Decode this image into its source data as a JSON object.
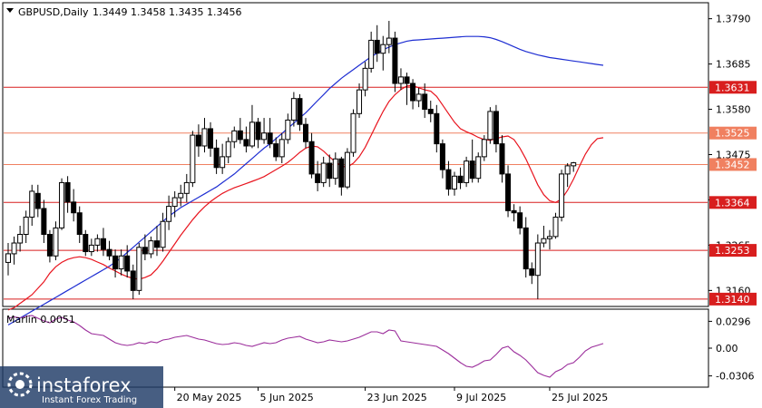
{
  "header": {
    "symbol": "GBPUSD,Daily",
    "ohlc": "1.3449 1.3458 1.3435 1.3456"
  },
  "sub_window": {
    "indicator_label": "Marlin 0.0051"
  },
  "watermark": {
    "brand": "instaforex",
    "tagline": "Instant Forex Trading"
  },
  "colors": {
    "background": "#ffffff",
    "candle_up": "#ffffff",
    "candle_down": "#000000",
    "ma_fast": "#e8141e",
    "ma_slow": "#1e2ed2",
    "level_line": "#d81e1e",
    "level_highlight": "#f08060",
    "marlin": "#9b2d9b"
  },
  "chart_data": [
    {
      "type": "candlestick",
      "symbol": "GBPUSD",
      "timeframe": "Daily",
      "x_ticks": [
        "20 May 2025",
        "5 Jun 2025",
        "23 Jun 2025",
        "9 Jul 2025",
        "25 Jul 2025"
      ],
      "y_ticks": [
        1.316,
        1.3265,
        1.337,
        1.3475,
        1.358,
        1.3685,
        1.379
      ],
      "ylim": [
        1.3125,
        1.3825
      ],
      "levels": [
        {
          "value": 1.3631,
          "label": "1.3631",
          "style": "line"
        },
        {
          "value": 1.3525,
          "label": "1.3525",
          "style": "highlight"
        },
        {
          "value": 1.3452,
          "label": "1.3452",
          "style": "highlight"
        },
        {
          "value": 1.3364,
          "label": "1.3364",
          "style": "line"
        },
        {
          "value": 1.3253,
          "label": "1.3253",
          "style": "line"
        },
        {
          "value": 1.314,
          "label": "1.3140",
          "style": "line"
        }
      ],
      "candles": [
        [
          1.3225,
          1.327,
          1.3195,
          1.3245
        ],
        [
          1.3245,
          1.3285,
          1.322,
          1.327
        ],
        [
          1.327,
          1.331,
          1.325,
          1.329
        ],
        [
          1.329,
          1.3345,
          1.327,
          1.333
        ],
        [
          1.333,
          1.3405,
          1.331,
          1.339
        ],
        [
          1.3385,
          1.3405,
          1.333,
          1.335
        ],
        [
          1.335,
          1.337,
          1.327,
          1.329
        ],
        [
          1.329,
          1.33,
          1.3225,
          1.324
        ],
        [
          1.324,
          1.332,
          1.323,
          1.3305
        ],
        [
          1.3305,
          1.342,
          1.33,
          1.341
        ],
        [
          1.341,
          1.3425,
          1.334,
          1.3365
        ],
        [
          1.3365,
          1.3395,
          1.332,
          1.334
        ],
        [
          1.334,
          1.3355,
          1.327,
          1.329
        ],
        [
          1.329,
          1.33,
          1.324,
          1.325
        ],
        [
          1.325,
          1.328,
          1.324,
          1.3265
        ],
        [
          1.3265,
          1.329,
          1.325,
          1.328
        ],
        [
          1.328,
          1.3305,
          1.324,
          1.3255
        ],
        [
          1.3255,
          1.3275,
          1.323,
          1.324
        ],
        [
          1.324,
          1.3255,
          1.319,
          1.321
        ],
        [
          1.321,
          1.3255,
          1.3195,
          1.324
        ],
        [
          1.324,
          1.3265,
          1.319,
          1.3205
        ],
        [
          1.3205,
          1.322,
          1.314,
          1.316
        ],
        [
          1.316,
          1.327,
          1.315,
          1.326
        ],
        [
          1.326,
          1.329,
          1.323,
          1.3245
        ],
        [
          1.3245,
          1.3285,
          1.3235,
          1.3275
        ],
        [
          1.3275,
          1.331,
          1.324,
          1.326
        ],
        [
          1.326,
          1.334,
          1.325,
          1.332
        ],
        [
          1.332,
          1.338,
          1.33,
          1.3355
        ],
        [
          1.3355,
          1.339,
          1.333,
          1.3375
        ],
        [
          1.3375,
          1.3405,
          1.3355,
          1.3385
        ],
        [
          1.3385,
          1.343,
          1.3365,
          1.341
        ],
        [
          1.341,
          1.353,
          1.34,
          1.352
        ],
        [
          1.352,
          1.3545,
          1.347,
          1.3495
        ],
        [
          1.3495,
          1.356,
          1.348,
          1.3535
        ],
        [
          1.3535,
          1.355,
          1.347,
          1.349
        ],
        [
          1.349,
          1.351,
          1.343,
          1.3445
        ],
        [
          1.3445,
          1.35,
          1.343,
          1.347
        ],
        [
          1.347,
          1.3515,
          1.3455,
          1.3505
        ],
        [
          1.3505,
          1.354,
          1.349,
          1.353
        ],
        [
          1.353,
          1.356,
          1.35,
          1.351
        ],
        [
          1.351,
          1.354,
          1.348,
          1.3495
        ],
        [
          1.3495,
          1.359,
          1.349,
          1.355
        ],
        [
          1.355,
          1.356,
          1.349,
          1.351
        ],
        [
          1.351,
          1.356,
          1.35,
          1.3525
        ],
        [
          1.3525,
          1.356,
          1.349,
          1.35
        ],
        [
          1.35,
          1.3515,
          1.346,
          1.347
        ],
        [
          1.347,
          1.3525,
          1.3455,
          1.351
        ],
        [
          1.351,
          1.357,
          1.35,
          1.3555
        ],
        [
          1.3555,
          1.362,
          1.354,
          1.3605
        ],
        [
          1.3605,
          1.3615,
          1.353,
          1.3545
        ],
        [
          1.3545,
          1.356,
          1.349,
          1.3505
        ],
        [
          1.3505,
          1.3525,
          1.342,
          1.343
        ],
        [
          1.343,
          1.346,
          1.339,
          1.341
        ],
        [
          1.341,
          1.347,
          1.34,
          1.3455
        ],
        [
          1.3455,
          1.3475,
          1.34,
          1.342
        ],
        [
          1.342,
          1.348,
          1.3405,
          1.3465
        ],
        [
          1.3465,
          1.347,
          1.338,
          1.34
        ],
        [
          1.34,
          1.349,
          1.3395,
          1.348
        ],
        [
          1.348,
          1.358,
          1.347,
          1.357
        ],
        [
          1.357,
          1.364,
          1.356,
          1.3625
        ],
        [
          1.3625,
          1.369,
          1.361,
          1.3675
        ],
        [
          1.3675,
          1.376,
          1.3665,
          1.374
        ],
        [
          1.374,
          1.3775,
          1.369,
          1.371
        ],
        [
          1.371,
          1.375,
          1.367,
          1.373
        ],
        [
          1.373,
          1.3785,
          1.371,
          1.3745
        ],
        [
          1.3745,
          1.376,
          1.362,
          1.364
        ],
        [
          1.364,
          1.3675,
          1.3625,
          1.3655
        ],
        [
          1.3655,
          1.3665,
          1.359,
          1.364
        ],
        [
          1.364,
          1.365,
          1.358,
          1.36
        ],
        [
          1.36,
          1.363,
          1.3585,
          1.3615
        ],
        [
          1.3615,
          1.364,
          1.356,
          1.358
        ],
        [
          1.358,
          1.36,
          1.355,
          1.357
        ],
        [
          1.357,
          1.359,
          1.348,
          1.35
        ],
        [
          1.35,
          1.351,
          1.342,
          1.344
        ],
        [
          1.344,
          1.346,
          1.338,
          1.3395
        ],
        [
          1.3395,
          1.3435,
          1.338,
          1.3425
        ],
        [
          1.3425,
          1.3445,
          1.3395,
          1.341
        ],
        [
          1.341,
          1.347,
          1.34,
          1.346
        ],
        [
          1.346,
          1.351,
          1.341,
          1.342
        ],
        [
          1.342,
          1.348,
          1.341,
          1.347
        ],
        [
          1.347,
          1.352,
          1.346,
          1.351
        ],
        [
          1.351,
          1.3585,
          1.35,
          1.3575
        ],
        [
          1.3575,
          1.359,
          1.348,
          1.35
        ],
        [
          1.35,
          1.352,
          1.341,
          1.343
        ],
        [
          1.343,
          1.345,
          1.333,
          1.3345
        ],
        [
          1.3345,
          1.336,
          1.332,
          1.334
        ],
        [
          1.334,
          1.3355,
          1.329,
          1.3305
        ],
        [
          1.3305,
          1.333,
          1.319,
          1.321
        ],
        [
          1.321,
          1.3225,
          1.3175,
          1.3195
        ],
        [
          1.3195,
          1.329,
          1.314,
          1.327
        ],
        [
          1.327,
          1.331,
          1.326,
          1.328
        ],
        [
          1.328,
          1.33,
          1.3255,
          1.3285
        ],
        [
          1.3285,
          1.334,
          1.328,
          1.333
        ],
        [
          1.333,
          1.344,
          1.332,
          1.343
        ],
        [
          1.343,
          1.3455,
          1.34,
          1.3449
        ],
        [
          1.3449,
          1.3458,
          1.3435,
          1.3456
        ]
      ],
      "ma_fast": [
        1.3115,
        1.312,
        1.313,
        1.314,
        1.315,
        1.3165,
        1.318,
        1.32,
        1.3215,
        1.3225,
        1.3232,
        1.3236,
        1.3238,
        1.3236,
        1.3232,
        1.3226,
        1.322,
        1.3212,
        1.3205,
        1.3198,
        1.3192,
        1.3188,
        1.3186,
        1.319,
        1.3196,
        1.321,
        1.3228,
        1.3248,
        1.3268,
        1.3288,
        1.3306,
        1.3324,
        1.334,
        1.3354,
        1.3366,
        1.3376,
        1.3385,
        1.3392,
        1.3398,
        1.3403,
        1.3408,
        1.3413,
        1.3418,
        1.3424,
        1.3432,
        1.344,
        1.3448,
        1.3457,
        1.3468,
        1.348,
        1.349,
        1.3495,
        1.3493,
        1.3483,
        1.347,
        1.3458,
        1.3448,
        1.3446,
        1.3455,
        1.347,
        1.3492,
        1.352,
        1.3548,
        1.3575,
        1.3598,
        1.3614,
        1.3626,
        1.3634,
        1.3635,
        1.363,
        1.3625,
        1.3622,
        1.361,
        1.359,
        1.357,
        1.355,
        1.3535,
        1.3528,
        1.3522,
        1.3515,
        1.351,
        1.3508,
        1.3512,
        1.3516,
        1.3518,
        1.351,
        1.349,
        1.3465,
        1.3435,
        1.3405,
        1.3382,
        1.3368,
        1.3364,
        1.3372,
        1.3392,
        1.3418,
        1.3448,
        1.3476,
        1.3498,
        1.3512,
        1.3514
      ],
      "ma_slow": [
        1.308,
        1.3088,
        1.3096,
        1.3104,
        1.3112,
        1.312,
        1.3128,
        1.3136,
        1.3144,
        1.3152,
        1.316,
        1.3168,
        1.3176,
        1.3184,
        1.3192,
        1.32,
        1.3208,
        1.3216,
        1.3226,
        1.3236,
        1.3248,
        1.326,
        1.3272,
        1.3284,
        1.3296,
        1.3308,
        1.332,
        1.3332,
        1.3342,
        1.3352,
        1.336,
        1.3368,
        1.3376,
        1.3384,
        1.3392,
        1.34,
        1.341,
        1.342,
        1.343,
        1.3442,
        1.3454,
        1.3466,
        1.3478,
        1.349,
        1.35,
        1.3512,
        1.3524,
        1.3536,
        1.3548,
        1.356,
        1.3572,
        1.3586,
        1.36,
        1.3614,
        1.3628,
        1.364,
        1.3652,
        1.3662,
        1.3672,
        1.3682,
        1.3692,
        1.3702,
        1.371,
        1.3718,
        1.3724,
        1.373,
        1.3734,
        1.3738,
        1.374,
        1.3741,
        1.3742,
        1.3743,
        1.3744,
        1.3745,
        1.3746,
        1.3747,
        1.3748,
        1.3749,
        1.3749,
        1.3749,
        1.3748,
        1.3746,
        1.3742,
        1.3737,
        1.3731,
        1.3725,
        1.3719,
        1.3714,
        1.371,
        1.3706,
        1.3703,
        1.37,
        1.3698,
        1.3696,
        1.3694,
        1.3692,
        1.369,
        1.3688,
        1.3686,
        1.3684,
        1.3682
      ]
    },
    {
      "type": "line",
      "name": "Marlin",
      "y_ticks": [
        0.0296,
        0.0,
        -0.0306
      ],
      "ylim": [
        -0.042,
        0.042
      ],
      "values": [
        0.033,
        0.0345,
        0.0335,
        0.035,
        0.036,
        0.033,
        0.03,
        0.028,
        0.032,
        0.034,
        0.031,
        0.029,
        0.025,
        0.02,
        0.016,
        0.015,
        0.014,
        0.01,
        0.006,
        0.004,
        0.003,
        0.004,
        0.006,
        0.005,
        0.007,
        0.006,
        0.009,
        0.01,
        0.012,
        0.013,
        0.014,
        0.012,
        0.01,
        0.009,
        0.007,
        0.005,
        0.004,
        0.0045,
        0.006,
        0.005,
        0.003,
        0.002,
        0.004,
        0.006,
        0.005,
        0.006,
        0.009,
        0.011,
        0.012,
        0.013,
        0.01,
        0.008,
        0.006,
        0.007,
        0.009,
        0.008,
        0.007,
        0.008,
        0.01,
        0.012,
        0.015,
        0.018,
        0.018,
        0.016,
        0.02,
        0.019,
        0.008,
        0.007,
        0.006,
        0.005,
        0.004,
        0.003,
        0.002,
        -0.002,
        -0.006,
        -0.011,
        -0.016,
        -0.02,
        -0.021,
        -0.018,
        -0.014,
        -0.013,
        -0.007,
        0.0,
        0.002,
        -0.004,
        -0.008,
        -0.013,
        -0.02,
        -0.027,
        -0.03,
        -0.032,
        -0.026,
        -0.023,
        -0.018,
        -0.016,
        -0.01,
        -0.003,
        0.001,
        0.003,
        0.0051
      ]
    }
  ]
}
